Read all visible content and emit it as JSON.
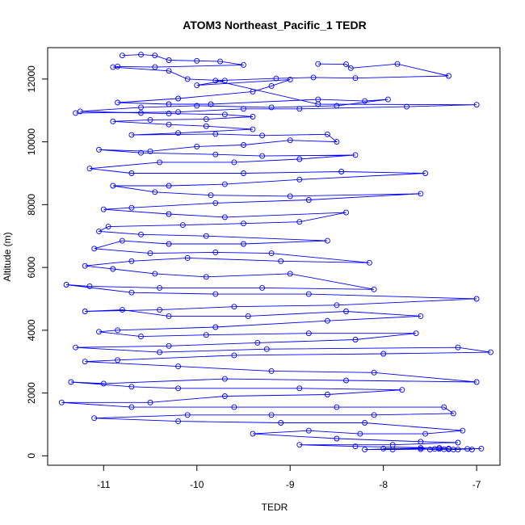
{
  "chart_data": {
    "type": "line",
    "title": "ATOM3 Northeast_Pacific_1 TEDR",
    "xlabel": "TEDR",
    "ylabel": "Altitude (m)",
    "xlim": [
      -11.6,
      -6.75
    ],
    "ylim": [
      -300,
      13000
    ],
    "xticks": [
      -11,
      -10,
      -9,
      -8,
      -7
    ],
    "yticks": [
      0,
      2000,
      4000,
      6000,
      8000,
      10000,
      12000
    ],
    "grid": false,
    "legend": "none",
    "marker": "open-circle",
    "color": "#0000ff",
    "series": [
      {
        "points": [
          [
            -10.8,
            12750
          ],
          [
            -10.6,
            12780
          ],
          [
            -10.45,
            12750
          ],
          [
            -10.3,
            12600
          ],
          [
            -10.0,
            12580
          ],
          [
            -9.75,
            12560
          ],
          [
            -9.5,
            12450
          ],
          [
            -10.45,
            12380
          ],
          [
            -10.85,
            12400
          ],
          [
            -10.9,
            12380
          ],
          [
            -10.3,
            12260
          ],
          [
            -10.1,
            12000
          ],
          [
            -9.7,
            11950
          ],
          [
            -10.0,
            11800
          ],
          [
            -9.0,
            11980
          ],
          [
            -9.2,
            11780
          ],
          [
            -9.4,
            11600
          ],
          [
            -10.2,
            11380
          ],
          [
            -10.85,
            11250
          ],
          [
            -10.3,
            11200
          ],
          [
            -9.85,
            11200
          ],
          [
            -8.7,
            11350
          ],
          [
            -8.2,
            11300
          ],
          [
            -7.95,
            11350
          ],
          [
            -8.5,
            11150
          ],
          [
            -9.2,
            11100
          ],
          [
            -10.0,
            11150
          ],
          [
            -10.6,
            11100
          ],
          [
            -11.25,
            10970
          ],
          [
            -10.6,
            10920
          ],
          [
            -10.3,
            10900
          ],
          [
            -9.7,
            10870
          ],
          [
            -9.4,
            10800
          ],
          [
            -9.9,
            10720
          ],
          [
            -10.5,
            10700
          ],
          [
            -10.9,
            10650
          ],
          [
            -10.3,
            10550
          ],
          [
            -9.9,
            10500
          ],
          [
            -9.4,
            10400
          ],
          [
            -10.2,
            10280
          ],
          [
            -10.7,
            10220
          ],
          [
            -9.8,
            10250
          ],
          [
            -9.3,
            10200
          ],
          [
            -8.6,
            10240
          ],
          [
            -8.5,
            10000
          ],
          [
            -9.0,
            10050
          ],
          [
            -9.5,
            9900
          ],
          [
            -10.0,
            9850
          ],
          [
            -10.5,
            9700
          ],
          [
            -11.05,
            9750
          ],
          [
            -10.6,
            9650
          ],
          [
            -9.8,
            9600
          ],
          [
            -9.3,
            9550
          ],
          [
            -8.3,
            9580
          ],
          [
            -8.9,
            9450
          ],
          [
            -9.6,
            9350
          ],
          [
            -10.4,
            9350
          ],
          [
            -11.15,
            9150
          ],
          [
            -10.7,
            9000
          ],
          [
            -9.5,
            9000
          ],
          [
            -8.45,
            9050
          ],
          [
            -7.55,
            9000
          ],
          [
            -8.9,
            8800
          ],
          [
            -9.7,
            8650
          ],
          [
            -10.3,
            8600
          ],
          [
            -10.9,
            8600
          ],
          [
            -10.45,
            8400
          ],
          [
            -9.85,
            8300
          ],
          [
            -9.0,
            8270
          ],
          [
            -7.6,
            8350
          ],
          [
            -8.8,
            8150
          ],
          [
            -9.8,
            8050
          ],
          [
            -10.7,
            7900
          ],
          [
            -11.0,
            7850
          ],
          [
            -10.3,
            7700
          ],
          [
            -9.7,
            7600
          ],
          [
            -8.4,
            7750
          ],
          [
            -8.9,
            7450
          ],
          [
            -9.5,
            7400
          ],
          [
            -10.15,
            7350
          ],
          [
            -10.95,
            7300
          ],
          [
            -11.05,
            7150
          ],
          [
            -10.6,
            7050
          ],
          [
            -9.9,
            7000
          ],
          [
            -8.6,
            6850
          ],
          [
            -9.5,
            6750
          ],
          [
            -10.3,
            6750
          ],
          [
            -10.8,
            6850
          ],
          [
            -11.1,
            6600
          ],
          [
            -10.5,
            6450
          ],
          [
            -9.8,
            6480
          ],
          [
            -9.2,
            6450
          ],
          [
            -8.15,
            6150
          ],
          [
            -9.1,
            6200
          ],
          [
            -10.1,
            6300
          ],
          [
            -10.7,
            6200
          ],
          [
            -11.2,
            6050
          ],
          [
            -10.9,
            5950
          ],
          [
            -10.45,
            5800
          ],
          [
            -9.9,
            5700
          ],
          [
            -9.0,
            5800
          ],
          [
            -8.1,
            5300
          ],
          [
            -9.3,
            5350
          ],
          [
            -10.4,
            5350
          ],
          [
            -11.15,
            5400
          ],
          [
            -11.4,
            5450
          ],
          [
            -10.7,
            5200
          ],
          [
            -9.8,
            5150
          ],
          [
            -8.8,
            5150
          ],
          [
            -7.0,
            5000
          ],
          [
            -8.5,
            4800
          ],
          [
            -9.6,
            4750
          ],
          [
            -10.4,
            4650
          ],
          [
            -11.2,
            4600
          ],
          [
            -10.8,
            4650
          ],
          [
            -10.3,
            4450
          ],
          [
            -9.45,
            4450
          ],
          [
            -8.4,
            4600
          ],
          [
            -7.6,
            4450
          ],
          [
            -8.6,
            4300
          ],
          [
            -9.8,
            4100
          ],
          [
            -10.85,
            4000
          ],
          [
            -11.05,
            3950
          ],
          [
            -10.6,
            3800
          ],
          [
            -9.9,
            3850
          ],
          [
            -8.8,
            3900
          ],
          [
            -7.65,
            3900
          ],
          [
            -8.3,
            3700
          ],
          [
            -9.35,
            3600
          ],
          [
            -10.3,
            3500
          ],
          [
            -11.3,
            3450
          ],
          [
            -10.4,
            3300
          ],
          [
            -9.25,
            3400
          ],
          [
            -7.2,
            3450
          ],
          [
            -6.85,
            3300
          ],
          [
            -8.0,
            3250
          ],
          [
            -9.6,
            3200
          ],
          [
            -10.85,
            3050
          ],
          [
            -11.2,
            3000
          ],
          [
            -10.2,
            2850
          ],
          [
            -9.2,
            2700
          ],
          [
            -8.1,
            2650
          ],
          [
            -7.0,
            2350
          ],
          [
            -8.4,
            2400
          ],
          [
            -9.7,
            2450
          ],
          [
            -11.0,
            2300
          ],
          [
            -11.35,
            2350
          ],
          [
            -10.7,
            2200
          ],
          [
            -10.2,
            2150
          ],
          [
            -8.9,
            2150
          ],
          [
            -7.8,
            2100
          ],
          [
            -8.6,
            1950
          ],
          [
            -9.7,
            1900
          ],
          [
            -10.5,
            1700
          ],
          [
            -11.45,
            1700
          ],
          [
            -10.7,
            1550
          ],
          [
            -9.6,
            1550
          ],
          [
            -8.5,
            1550
          ],
          [
            -7.35,
            1550
          ],
          [
            -7.25,
            1350
          ],
          [
            -8.1,
            1300
          ],
          [
            -9.2,
            1300
          ],
          [
            -10.1,
            1300
          ],
          [
            -11.1,
            1200
          ],
          [
            -10.2,
            1100
          ],
          [
            -9.1,
            1050
          ],
          [
            -8.2,
            1050
          ],
          [
            -7.15,
            800
          ],
          [
            -7.55,
            700
          ],
          [
            -8.25,
            700
          ],
          [
            -8.8,
            800
          ],
          [
            -9.4,
            700
          ],
          [
            -8.5,
            550
          ],
          [
            -7.6,
            450
          ],
          [
            -7.2,
            420
          ],
          [
            -7.9,
            350
          ],
          [
            -8.9,
            350
          ],
          [
            -8.3,
            300
          ],
          [
            -7.4,
            250
          ],
          [
            -7.3,
            230
          ],
          [
            -7.6,
            210
          ],
          [
            -8.0,
            230
          ],
          [
            -7.45,
            220
          ],
          [
            -7.35,
            210
          ],
          [
            -7.25,
            200
          ],
          [
            -6.95,
            230
          ],
          [
            -7.4,
            220
          ],
          [
            -7.3,
            210
          ],
          [
            -7.5,
            200
          ],
          [
            -7.6,
            250
          ],
          [
            -8.2,
            200
          ],
          [
            -7.9,
            200
          ],
          [
            -7.3,
            220
          ],
          [
            -7.2,
            200
          ],
          [
            -7.1,
            220
          ],
          [
            -7.05,
            200
          ]
        ]
      },
      {
        "points": [
          [
            -8.7,
            12480
          ],
          [
            -8.4,
            12470
          ],
          [
            -8.35,
            12350
          ],
          [
            -7.85,
            12480
          ],
          [
            -7.3,
            12100
          ],
          [
            -8.3,
            12030
          ],
          [
            -8.75,
            12050
          ],
          [
            -9.15,
            12020
          ],
          [
            -9.8,
            11950
          ],
          [
            -8.7,
            11200
          ],
          [
            -7.0,
            11180
          ],
          [
            -7.75,
            11120
          ],
          [
            -8.9,
            11050
          ],
          [
            -9.5,
            11050
          ],
          [
            -10.2,
            10950
          ],
          [
            -11.3,
            10920
          ]
        ]
      }
    ]
  }
}
